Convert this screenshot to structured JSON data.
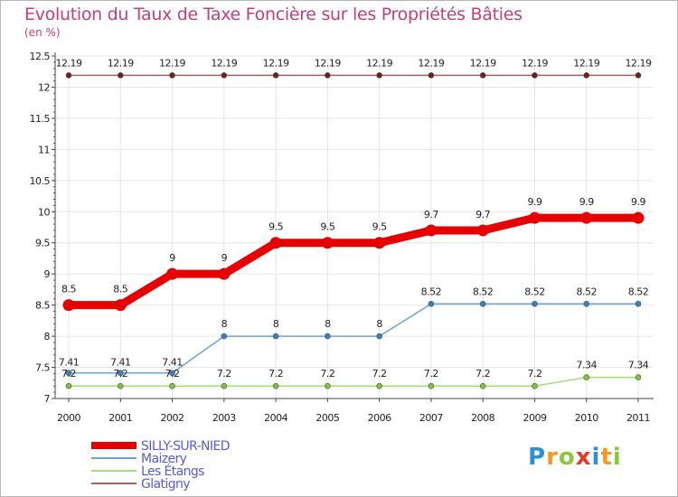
{
  "title": "Evolution du Taux de Taxe Foncière sur les Propriétés Bâties",
  "subtitle": "(en %)",
  "logo": {
    "p": "P",
    "r": "r",
    "o": "o",
    "x": "x",
    "i": "i",
    "t": "t",
    "i2": "i"
  },
  "chart_data": {
    "type": "line",
    "categories": [
      "2000",
      "2001",
      "2002",
      "2003",
      "2004",
      "2005",
      "2006",
      "2007",
      "2008",
      "2009",
      "2010",
      "2011"
    ],
    "ylim": [
      7,
      12.5
    ],
    "yticks": [
      7,
      7.5,
      8,
      8.5,
      9,
      9.5,
      10,
      10.5,
      11,
      11.5,
      12,
      12.5
    ],
    "ytick_labels": [
      "7",
      "7.5",
      "8",
      "8.5",
      "9",
      "9.5",
      "10",
      "10.5",
      "11",
      "11.5",
      "12",
      "12.5"
    ],
    "legend_position": "bottom-left",
    "series": [
      {
        "name": "SILLY-SUR-NIED",
        "color": "#e60000",
        "marker": "#e60000",
        "values": [
          8.5,
          8.5,
          9,
          9,
          9.5,
          9.5,
          9.5,
          9.7,
          9.7,
          9.9,
          9.9,
          9.9
        ],
        "labels": [
          "8.5",
          "8.5",
          "9",
          "9",
          "9.5",
          "9.5",
          "9.5",
          "9.7",
          "9.7",
          "9.9",
          "9.9",
          "9.9"
        ]
      },
      {
        "name": "Maizery",
        "color": "#6fa3cf",
        "marker": "#3a7fc0",
        "values": [
          7.41,
          7.41,
          7.41,
          8,
          8,
          8,
          8,
          8.52,
          8.52,
          8.52,
          8.52,
          8.52
        ],
        "labels": [
          "7.41",
          "7.41",
          "7.41",
          "8",
          "8",
          "8",
          "8",
          "8.52",
          "8.52",
          "8.52",
          "8.52",
          "8.52"
        ]
      },
      {
        "name": "Les Étangs",
        "color": "#a6dc7a",
        "marker": "#7cc23e",
        "values": [
          7.2,
          7.2,
          7.2,
          7.2,
          7.2,
          7.2,
          7.2,
          7.2,
          7.2,
          7.2,
          7.34,
          7.34
        ],
        "labels": [
          "7.2",
          "7.2",
          "7.2",
          "7.2",
          "7.2",
          "7.2",
          "7.2",
          "7.2",
          "7.2",
          "7.2",
          "7.34",
          "7.34"
        ]
      },
      {
        "name": "Glatigny",
        "color": "#9b6464",
        "marker": "#6b2020",
        "values": [
          12.19,
          12.19,
          12.19,
          12.19,
          12.19,
          12.19,
          12.19,
          12.19,
          12.19,
          12.19,
          12.19,
          12.19
        ],
        "labels": [
          "12.19",
          "12.19",
          "12.19",
          "12.19",
          "12.19",
          "12.19",
          "12.19",
          "12.19",
          "12.19",
          "12.19",
          "12.19",
          "12.19"
        ]
      }
    ]
  }
}
